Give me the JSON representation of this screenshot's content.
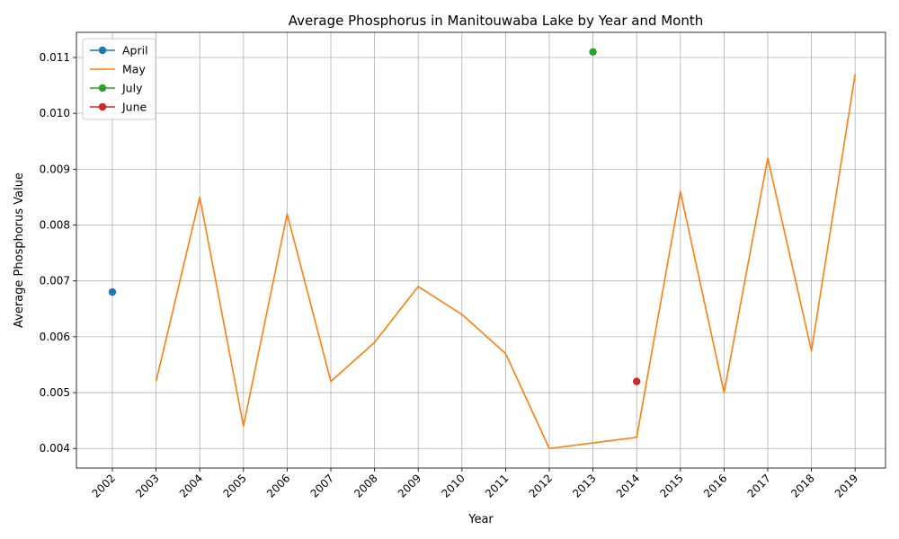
{
  "chart_data": {
    "type": "line",
    "title": "Average Phosphorus in Manitouwaba Lake by Year and Month",
    "xlabel": "Year",
    "ylabel": "Average Phosphorus Value",
    "x_categories": [
      "2002",
      "2003",
      "2004",
      "2005",
      "2006",
      "2007",
      "2008",
      "2009",
      "2010",
      "2011",
      "2012",
      "2013",
      "2014",
      "2015",
      "2016",
      "2017",
      "2018",
      "2019"
    ],
    "ylim": [
      0.00365,
      0.01145
    ],
    "yticks": [
      0.004,
      0.005,
      0.006,
      0.007,
      0.008,
      0.009,
      0.01,
      0.011
    ],
    "ytick_labels": [
      "0.004",
      "0.005",
      "0.006",
      "0.007",
      "0.008",
      "0.009",
      "0.010",
      "0.011"
    ],
    "grid": true,
    "legend_position": "upper-left",
    "series": [
      {
        "name": "April",
        "color": "#1f77b4",
        "marker": true,
        "line": true,
        "points": [
          {
            "x": "2002",
            "y": 0.0068
          }
        ]
      },
      {
        "name": "May",
        "color": "#ff7f0e",
        "marker": false,
        "line": true,
        "points": [
          {
            "x": "2003",
            "y": 0.0052
          },
          {
            "x": "2004",
            "y": 0.0085
          },
          {
            "x": "2005",
            "y": 0.0044
          },
          {
            "x": "2006",
            "y": 0.0082
          },
          {
            "x": "2007",
            "y": 0.0052
          },
          {
            "x": "2008",
            "y": 0.0059
          },
          {
            "x": "2009",
            "y": 0.0069
          },
          {
            "x": "2010",
            "y": 0.0064
          },
          {
            "x": "2011",
            "y": 0.0057
          },
          {
            "x": "2012",
            "y": 0.004
          },
          {
            "x": "2014",
            "y": 0.0042
          },
          {
            "x": "2015",
            "y": 0.0086
          },
          {
            "x": "2016",
            "y": 0.005
          },
          {
            "x": "2017",
            "y": 0.0092
          },
          {
            "x": "2018",
            "y": 0.00575
          },
          {
            "x": "2019",
            "y": 0.0107
          }
        ]
      },
      {
        "name": "July",
        "color": "#2ca02c",
        "marker": true,
        "line": true,
        "points": [
          {
            "x": "2013",
            "y": 0.0111
          }
        ]
      },
      {
        "name": "June",
        "color": "#d62728",
        "marker": true,
        "line": true,
        "points": [
          {
            "x": "2014",
            "y": 0.0052
          }
        ]
      }
    ]
  }
}
